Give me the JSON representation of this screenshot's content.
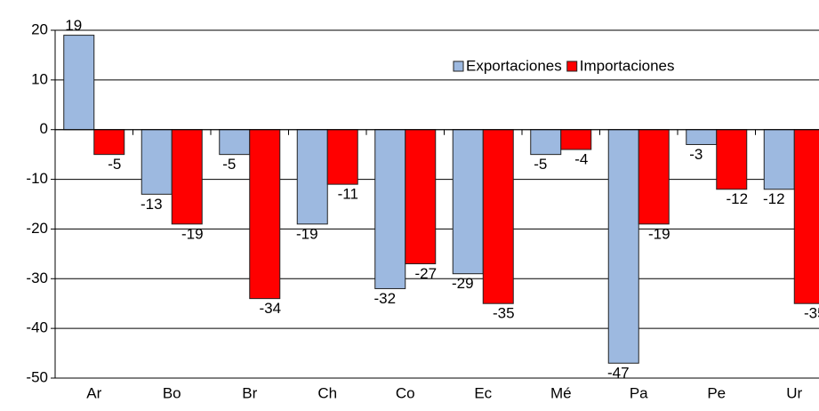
{
  "chart_data": {
    "type": "bar",
    "categories": [
      "Ar",
      "Bo",
      "Br",
      "Ch",
      "Co",
      "Ec",
      "Mé",
      "Pa",
      "Pe",
      "Ur"
    ],
    "series": [
      {
        "name": "Exportaciones",
        "color": "#9db9e0",
        "values": [
          19,
          -13,
          -5,
          -19,
          -32,
          -29,
          -5,
          -47,
          -3,
          -12
        ]
      },
      {
        "name": "Importaciones",
        "color": "#ff0000",
        "values": [
          -5,
          -19,
          -34,
          -11,
          -27,
          -35,
          -4,
          -19,
          -12,
          -35
        ]
      }
    ],
    "ylim": [
      -50,
      20
    ],
    "yticks": [
      -50,
      -40,
      -30,
      -20,
      -10,
      0,
      10,
      20
    ],
    "grid": true,
    "legend": "top-right"
  }
}
